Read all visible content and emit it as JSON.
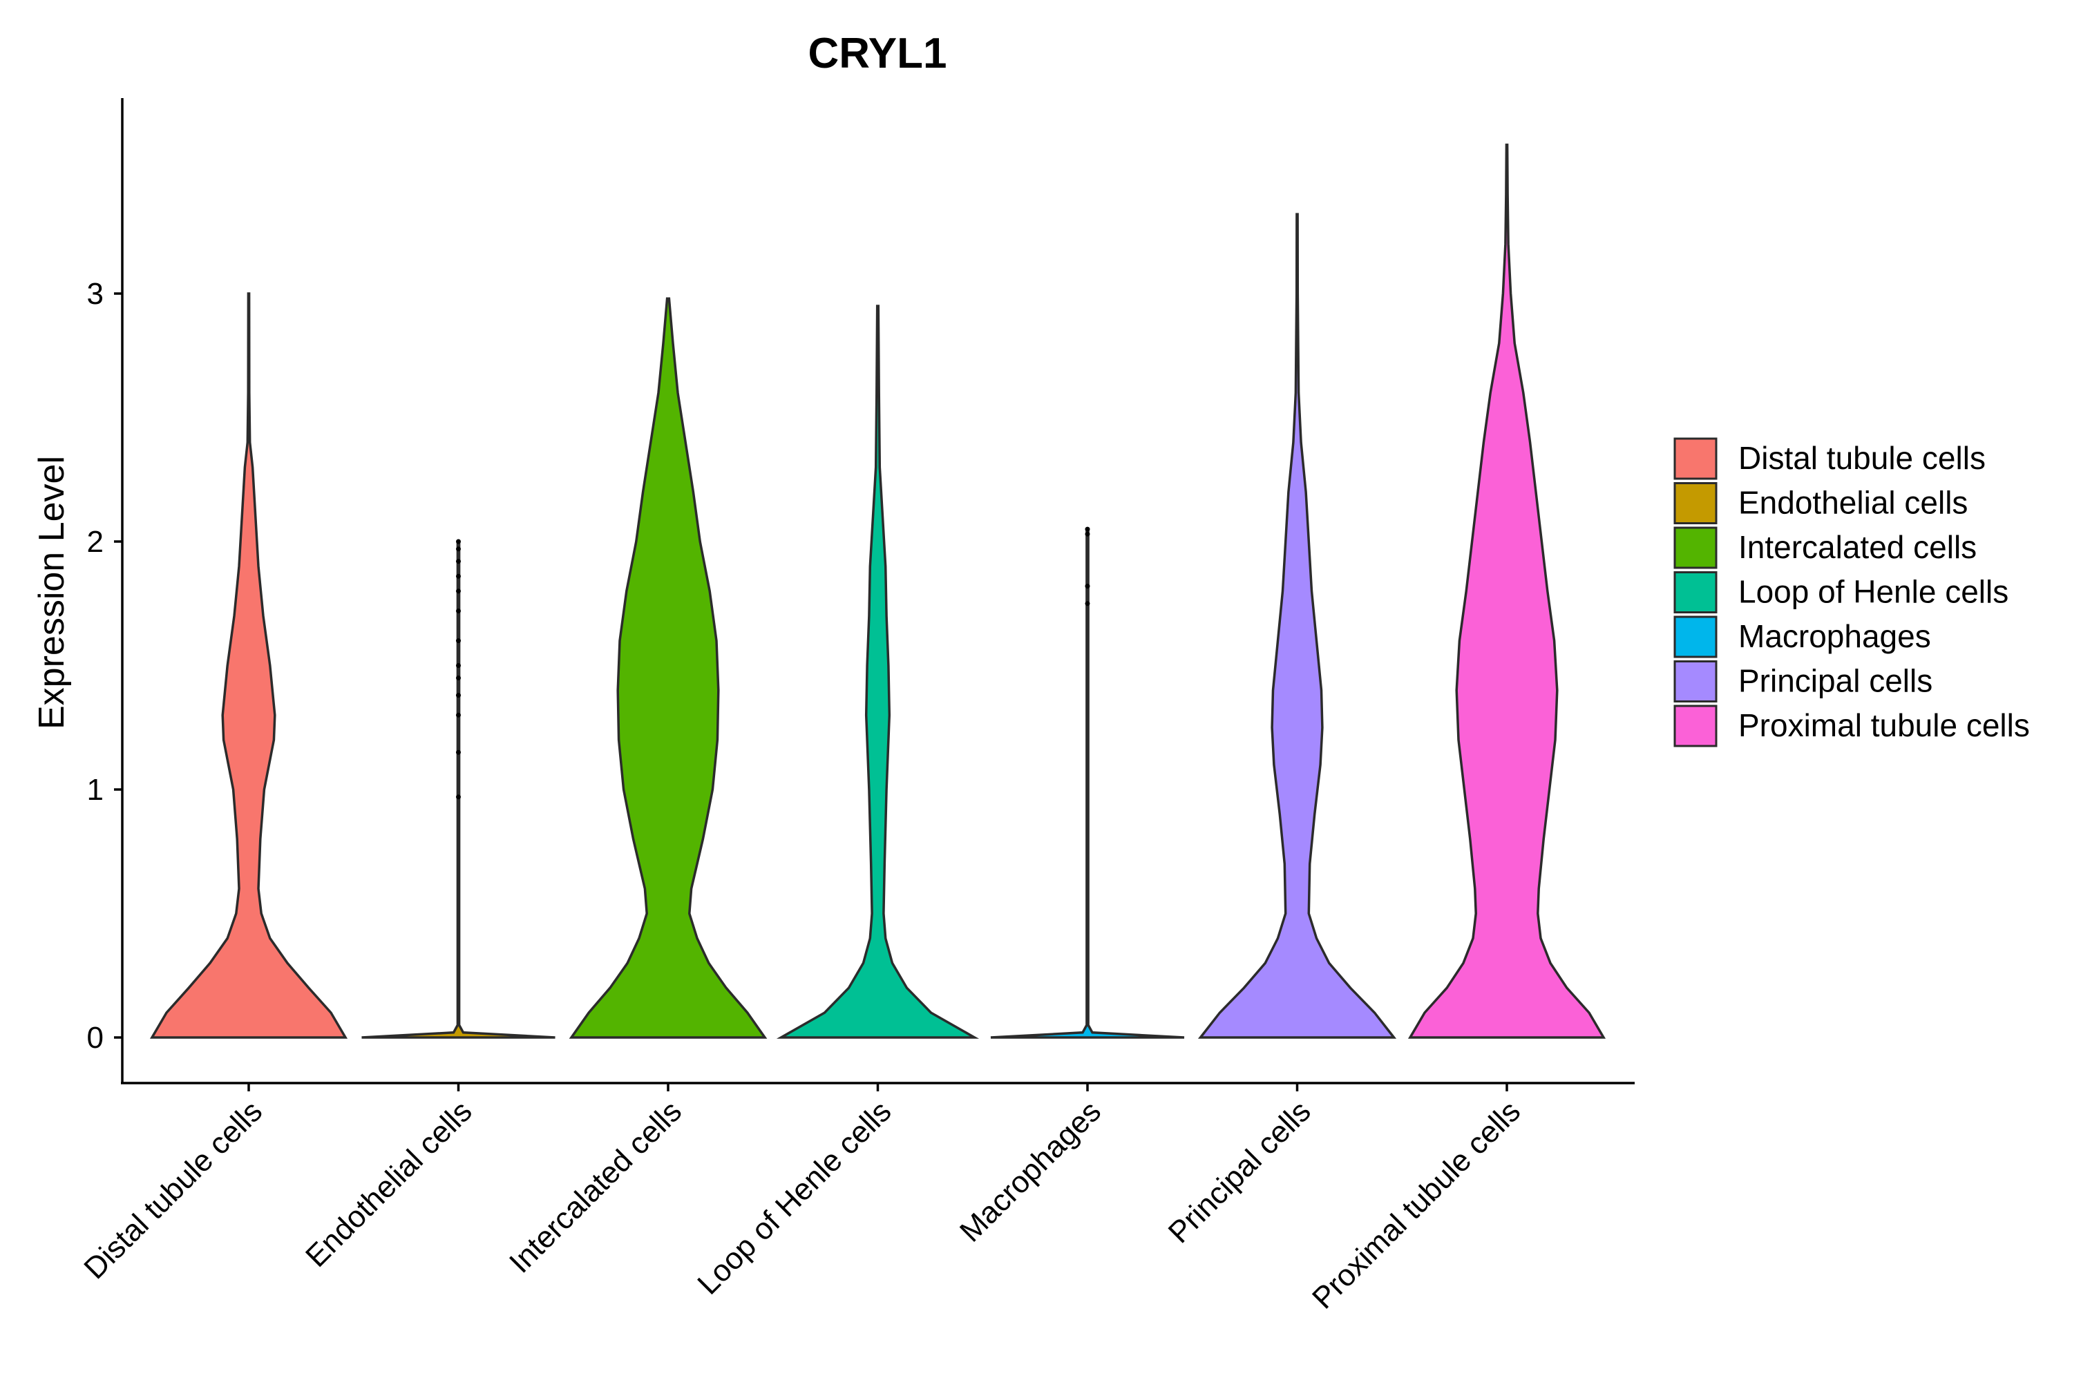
{
  "chart_data": {
    "type": "violin",
    "title": "CRYL1",
    "xlabel": "",
    "ylabel": "Expression Level",
    "ylim": [
      -0.18,
      3.8
    ],
    "yticks": [
      0,
      1,
      2,
      3
    ],
    "grid": false,
    "legend": "right",
    "categories": [
      "Distal tubule cells",
      "Endothelial cells",
      "Intercalated cells",
      "Loop of Henle cells",
      "Macrophages",
      "Principal cells",
      "Proximal tubule cells"
    ],
    "colors": [
      "#F8766D",
      "#C49A00",
      "#53B400",
      "#00C094",
      "#00B6EB",
      "#A58AFF",
      "#FB61D7"
    ],
    "series": [
      {
        "name": "Distal tubule cells",
        "max": 3.0,
        "density": [
          [
            0,
            1.0
          ],
          [
            0.1,
            0.85
          ],
          [
            0.2,
            0.62
          ],
          [
            0.3,
            0.4
          ],
          [
            0.4,
            0.22
          ],
          [
            0.5,
            0.13
          ],
          [
            0.6,
            0.1
          ],
          [
            0.8,
            0.12
          ],
          [
            1.0,
            0.16
          ],
          [
            1.2,
            0.26
          ],
          [
            1.3,
            0.27
          ],
          [
            1.5,
            0.22
          ],
          [
            1.7,
            0.15
          ],
          [
            1.9,
            0.1
          ],
          [
            2.1,
            0.07
          ],
          [
            2.3,
            0.04
          ],
          [
            2.4,
            0.012
          ],
          [
            2.6,
            0.006
          ],
          [
            3.0,
            0.004
          ]
        ]
      },
      {
        "name": "Endothelial cells",
        "max": 2.0,
        "density": [
          [
            0,
            1.0
          ],
          [
            0.02,
            0.05
          ],
          [
            0.05,
            0.008
          ],
          [
            1.0,
            0.008
          ],
          [
            2.0,
            0.008
          ]
        ]
      },
      {
        "name": "Intercalated cells",
        "max": 2.98,
        "density": [
          [
            0,
            1.0
          ],
          [
            0.1,
            0.82
          ],
          [
            0.2,
            0.6
          ],
          [
            0.3,
            0.42
          ],
          [
            0.4,
            0.3
          ],
          [
            0.5,
            0.22
          ],
          [
            0.6,
            0.24
          ],
          [
            0.8,
            0.36
          ],
          [
            1.0,
            0.46
          ],
          [
            1.2,
            0.51
          ],
          [
            1.4,
            0.52
          ],
          [
            1.6,
            0.5
          ],
          [
            1.8,
            0.43
          ],
          [
            2.0,
            0.33
          ],
          [
            2.2,
            0.26
          ],
          [
            2.4,
            0.18
          ],
          [
            2.6,
            0.1
          ],
          [
            2.8,
            0.05
          ],
          [
            2.98,
            0.01
          ]
        ]
      },
      {
        "name": "Loop of Henle cells",
        "max": 2.95,
        "density": [
          [
            0,
            1.0
          ],
          [
            0.1,
            0.55
          ],
          [
            0.2,
            0.3
          ],
          [
            0.3,
            0.15
          ],
          [
            0.4,
            0.08
          ],
          [
            0.5,
            0.06
          ],
          [
            0.7,
            0.07
          ],
          [
            1.0,
            0.09
          ],
          [
            1.3,
            0.12
          ],
          [
            1.5,
            0.11
          ],
          [
            1.7,
            0.09
          ],
          [
            1.9,
            0.08
          ],
          [
            2.1,
            0.05
          ],
          [
            2.3,
            0.02
          ],
          [
            2.6,
            0.012
          ],
          [
            2.95,
            0.006
          ]
        ]
      },
      {
        "name": "Macrophages",
        "max": 2.05,
        "density": [
          [
            0,
            1.0
          ],
          [
            0.02,
            0.05
          ],
          [
            0.05,
            0.008
          ],
          [
            1.0,
            0.008
          ],
          [
            2.05,
            0.008
          ]
        ]
      },
      {
        "name": "Principal cells",
        "max": 3.32,
        "density": [
          [
            0,
            1.0
          ],
          [
            0.1,
            0.8
          ],
          [
            0.2,
            0.55
          ],
          [
            0.3,
            0.33
          ],
          [
            0.4,
            0.2
          ],
          [
            0.5,
            0.12
          ],
          [
            0.7,
            0.13
          ],
          [
            0.9,
            0.18
          ],
          [
            1.1,
            0.24
          ],
          [
            1.25,
            0.26
          ],
          [
            1.4,
            0.25
          ],
          [
            1.6,
            0.2
          ],
          [
            1.8,
            0.15
          ],
          [
            2.0,
            0.12
          ],
          [
            2.2,
            0.09
          ],
          [
            2.4,
            0.04
          ],
          [
            2.6,
            0.015
          ],
          [
            3.0,
            0.006
          ],
          [
            3.32,
            0.004
          ]
        ]
      },
      {
        "name": "Proximal tubule cells",
        "max": 3.6,
        "density": [
          [
            0,
            1.0
          ],
          [
            0.1,
            0.85
          ],
          [
            0.2,
            0.62
          ],
          [
            0.3,
            0.45
          ],
          [
            0.4,
            0.35
          ],
          [
            0.5,
            0.32
          ],
          [
            0.6,
            0.33
          ],
          [
            0.8,
            0.38
          ],
          [
            1.0,
            0.44
          ],
          [
            1.2,
            0.5
          ],
          [
            1.4,
            0.52
          ],
          [
            1.6,
            0.49
          ],
          [
            1.8,
            0.42
          ],
          [
            2.0,
            0.36
          ],
          [
            2.2,
            0.3
          ],
          [
            2.4,
            0.24
          ],
          [
            2.6,
            0.17
          ],
          [
            2.8,
            0.08
          ],
          [
            3.0,
            0.04
          ],
          [
            3.2,
            0.015
          ],
          [
            3.4,
            0.008
          ],
          [
            3.6,
            0.004
          ]
        ]
      }
    ],
    "jitter_points": [
      {
        "category": "Endothelial cells",
        "values": [
          0.97,
          1.15,
          1.3,
          1.38,
          1.45,
          1.5,
          1.6,
          1.72,
          1.8,
          1.86,
          1.92,
          1.97,
          2.0
        ]
      },
      {
        "category": "Macrophages",
        "values": [
          1.75,
          1.82,
          2.03,
          2.05
        ]
      }
    ]
  }
}
